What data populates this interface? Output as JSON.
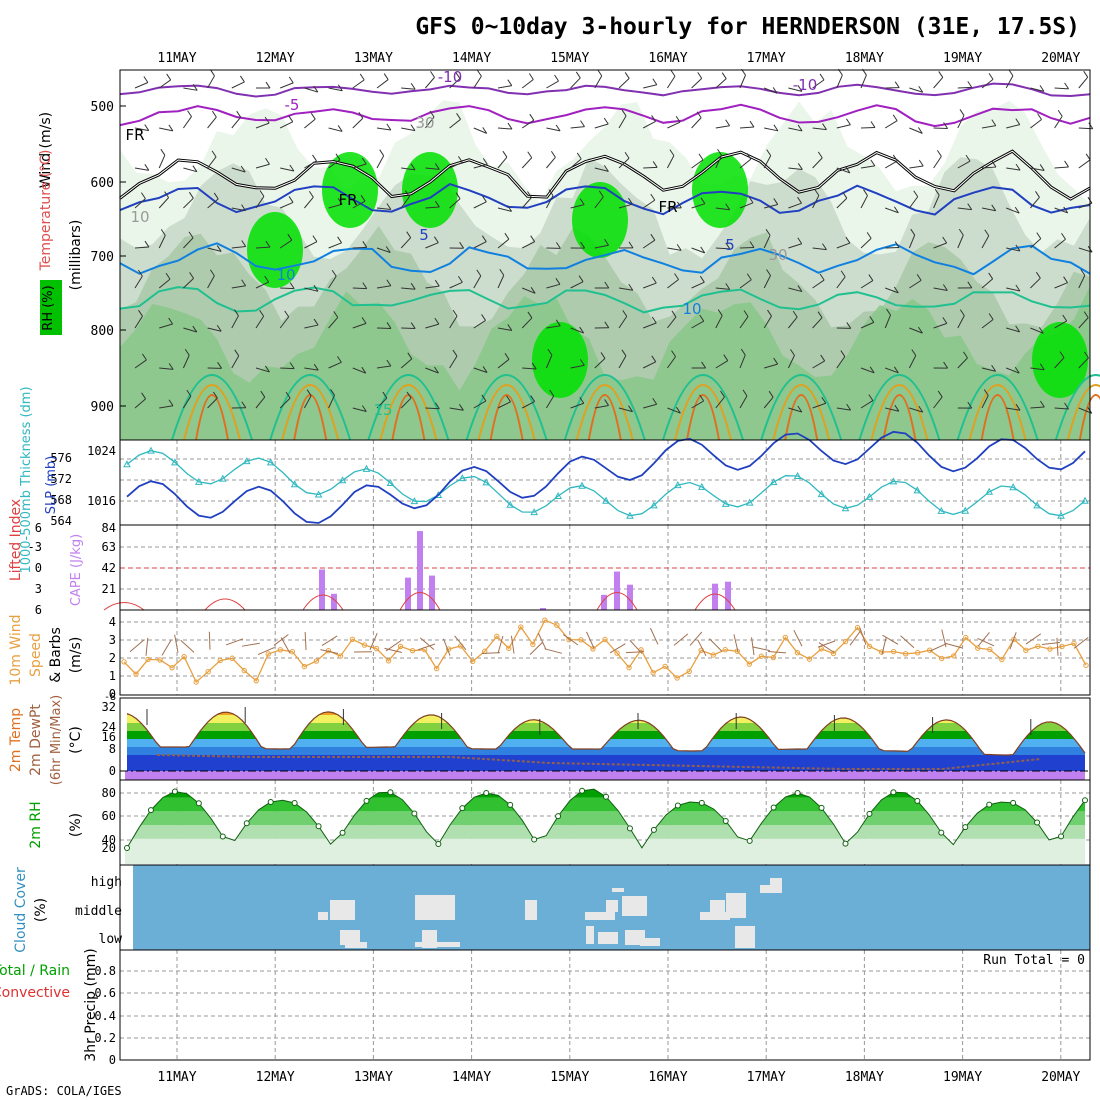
{
  "title": "GFS 0~10day 3-hourly for HERNDERSON (31E, 17.5S)",
  "footer": "GrADS: COLA/IGES",
  "run_total": "Run Total = 0",
  "dates": [
    "11MAY",
    "12MAY",
    "13MAY",
    "14MAY",
    "15MAY",
    "16MAY",
    "17MAY",
    "18MAY",
    "19MAY",
    "20MAY"
  ],
  "colors": {
    "slp": "#2040c0",
    "thickness": "#30b8c0",
    "cape": "#c080f0",
    "lifted": "#e04040",
    "wind10": "#e8a040",
    "barb": "#a07050",
    "temp_max": "#e07010",
    "dewpt": "#906050",
    "cloud_bg": "#6baed6",
    "cloud_fill": "#e8e8e8",
    "rh_dark": "#00b000"
  },
  "panels": {
    "upper": {
      "ylabels": [
        "500",
        "600",
        "700",
        "800",
        "900"
      ],
      "axis_title": "(millibars)",
      "side_labels": {
        "wind": "Wind (m/s)",
        "temp": "Temperature (°C)",
        "rh": "RH (%)"
      },
      "contour_labels": [
        "-10",
        "-10",
        "-5",
        "FR",
        "FR",
        "FR",
        "5",
        "5",
        "10",
        "10",
        "15",
        "10",
        "30",
        "30"
      ]
    },
    "slp": {
      "yl_left": [
        "576",
        "572",
        "568",
        "564"
      ],
      "yl_right": [
        "1024",
        "1016"
      ],
      "label_left": "1000-500mb Thickness (dm)",
      "label_right": "SLP (mb)"
    },
    "cape": {
      "yl_left": [
        "6",
        "-3",
        "0",
        "3",
        "6"
      ],
      "yl_right": [
        "84",
        "63",
        "42",
        "21"
      ],
      "label_left": "Lifted Index",
      "label_right": "CAPE (J/kg)"
    },
    "wind": {
      "yl": [
        "4",
        "3",
        "2",
        "1",
        "0"
      ],
      "label1": "10m Wind",
      "label2": "Speed",
      "label3": "& Barbs",
      "unit": "(m/s)"
    },
    "temp": {
      "yl": [
        "32",
        "24",
        "16",
        "8",
        "0"
      ],
      "label1": "2m Temp",
      "label2": "2m DewPt",
      "label3": "(6hr Min/Max)",
      "unit": "(°C)",
      "extra_tick": "-8"
    },
    "rh": {
      "yl": [
        "80",
        "60",
        "40",
        "20"
      ],
      "label1": "2m RH",
      "unit": "(%)"
    },
    "cloud": {
      "levels": [
        "high",
        "middle",
        "low"
      ],
      "label1": "Cloud Cover",
      "unit": "(%)"
    },
    "precip": {
      "yl": [
        "0.8",
        "0.6",
        "0.4",
        "0.2",
        "0"
      ],
      "label1": "Total / Rain",
      "label2": "Convective",
      "label3": "3hr Precip (mm)"
    }
  },
  "chart_data": [
    {
      "type": "line",
      "title": "SLP / 1000-500mb Thickness",
      "x": [
        "11MAY",
        "12MAY",
        "13MAY",
        "14MAY",
        "15MAY",
        "16MAY",
        "17MAY",
        "18MAY",
        "19MAY",
        "20MAY"
      ],
      "series": [
        {
          "name": "SLP (mb)",
          "values": [
            1017,
            1016,
            1015,
            1019,
            1020,
            1024,
            1025,
            1026,
            1024,
            1025
          ]
        },
        {
          "name": "1000-500mb Thickness (dm)",
          "values": [
            574,
            573,
            571,
            570,
            568,
            568,
            570,
            569,
            568,
            568
          ]
        }
      ],
      "ylim_left": [
        564,
        578
      ],
      "ylim_right": [
        1012,
        1027
      ]
    },
    {
      "type": "bar",
      "title": "CAPE (J/kg)",
      "x": [
        "12MAY 12Z",
        "12MAY 15Z",
        "13MAY 09Z",
        "13MAY 12Z",
        "13MAY 15Z",
        "14MAY 18Z",
        "15MAY 09Z",
        "15MAY 12Z",
        "15MAY 15Z",
        "16MAY 12Z",
        "16MAY 15Z"
      ],
      "values": [
        40,
        16,
        32,
        78,
        34,
        2,
        15,
        38,
        25,
        26,
        28
      ],
      "ylim": [
        0,
        84
      ]
    },
    {
      "type": "line",
      "title": "10m Wind Speed (m/s)",
      "x": [
        "11MAY",
        "12MAY",
        "13MAY",
        "14MAY",
        "15MAY",
        "16MAY",
        "17MAY",
        "18MAY",
        "19MAY",
        "20MAY"
      ],
      "values": [
        1.5,
        1.2,
        2.5,
        2.0,
        3.5,
        1.5,
        2.5,
        3.0,
        2.5,
        2.0
      ],
      "ylim": [
        0,
        4.5
      ]
    },
    {
      "type": "area",
      "title": "2m Temp (°C)",
      "x": [
        "11MAY",
        "12MAY",
        "13MAY",
        "14MAY",
        "15MAY",
        "16MAY",
        "17MAY",
        "18MAY",
        "19MAY",
        "20MAY"
      ],
      "series": [
        {
          "name": "2m Temp max",
          "values": [
            29,
            30,
            29,
            27,
            24,
            27,
            27,
            26,
            25,
            24
          ]
        },
        {
          "name": "2m Temp min",
          "values": [
            12,
            11,
            12,
            11,
            11,
            10,
            11,
            10,
            8,
            8
          ]
        },
        {
          "name": "2m DewPt",
          "values": [
            8,
            7,
            7,
            7,
            4,
            3,
            2,
            1,
            1,
            6
          ]
        }
      ],
      "ylim": [
        -2,
        34
      ]
    },
    {
      "type": "area",
      "title": "2m RH (%)",
      "x": [
        "11MAY",
        "12MAY",
        "13MAY",
        "14MAY",
        "15MAY",
        "16MAY",
        "17MAY",
        "18MAY",
        "19MAY",
        "20MAY"
      ],
      "values": [
        82,
        72,
        82,
        80,
        85,
        70,
        80,
        82,
        70,
        88
      ],
      "ylim": [
        10,
        95
      ]
    },
    {
      "type": "line",
      "title": "3hr Precip (mm)",
      "x": [
        "11MAY",
        "20MAY"
      ],
      "values": [
        0,
        0
      ],
      "ylim": [
        0,
        1
      ]
    }
  ]
}
